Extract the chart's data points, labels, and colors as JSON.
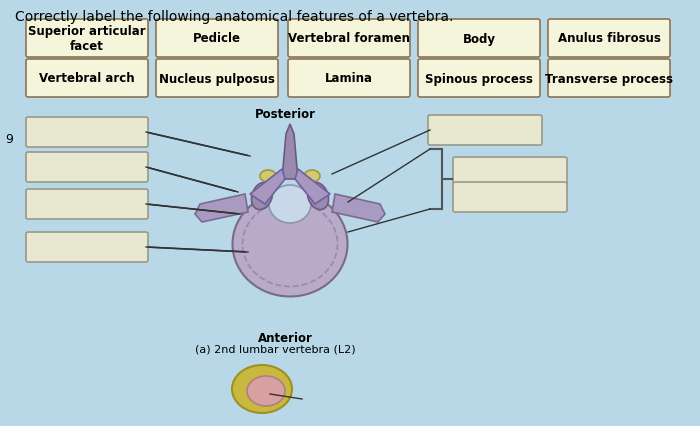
{
  "title": "Correctly label the following anatomical features of a vertebra.",
  "title_fontsize": 10,
  "background_color": "#b8d8e8",
  "label_boxes_row1": [
    "Superior articular\nfacet",
    "Pedicle",
    "Vertebral foramen",
    "Body",
    "Anulus fibrosus"
  ],
  "label_boxes_row2": [
    "Vertebral arch",
    "Nucleus pulposus",
    "Lamina",
    "Spinous process",
    "Transverse process"
  ],
  "box_facecolor": "#f5f5dc",
  "box_edgecolor": "#8B7355",
  "answer_box_color": "#e8e8d0",
  "answer_box_edge": "#999988",
  "left_blank_labels": [
    "",
    "",
    "",
    ""
  ],
  "right_blank_labels": [
    "",
    ""
  ],
  "posterior_label": "Posterior",
  "anterior_label": "Anterior",
  "caption": "(a) 2nd lumbar vertebra (L2)",
  "side_number": "9"
}
